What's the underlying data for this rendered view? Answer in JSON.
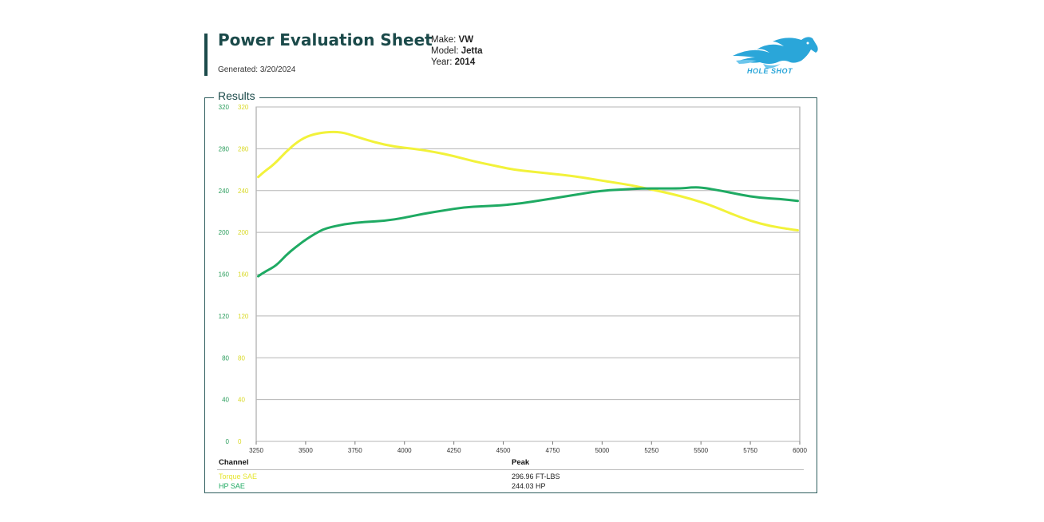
{
  "header": {
    "title": "Power Evaluation Sheet",
    "generated": "Generated: 3/20/2024",
    "make_label": "Make:",
    "make": "VW",
    "model_label": "Model:",
    "model": "Jetta",
    "year_label": "Year:",
    "year": "2014",
    "logo_text": "HOLE SHOT",
    "logo_color": "#2aa6d9"
  },
  "results_label": "Results",
  "colors": {
    "torque": "#f2f23a",
    "hp": "#1faa63",
    "accent": "#1b4a4a",
    "grid": "#b5b5b5"
  },
  "chart_data": {
    "type": "line",
    "x_ticks": [
      "3250",
      "3500",
      "3750",
      "4000",
      "4250",
      "4500",
      "4750",
      "5000",
      "5250",
      "5500",
      "5750",
      "6000"
    ],
    "y_left_ticks": [
      "320",
      "280",
      "240",
      "200",
      "160",
      "120",
      "80",
      "40",
      "0"
    ],
    "y_right_ticks": [
      "320",
      "280",
      "240",
      "200",
      "160",
      "120",
      "80",
      "40",
      "0"
    ],
    "xlim": [
      3250,
      6000
    ],
    "ylim": [
      0,
      320
    ],
    "grid": true,
    "series": [
      {
        "name": "Torque SAE",
        "color": "#f2f23a",
        "x": [
          3260,
          3290,
          3340,
          3400,
          3460,
          3520,
          3600,
          3680,
          3750,
          3850,
          3950,
          4050,
          4150,
          4250,
          4350,
          4450,
          4550,
          4650,
          4750,
          4850,
          4950,
          5050,
          5150,
          5250,
          5350,
          5450,
          5550,
          5650,
          5750,
          5850,
          5950,
          5990
        ],
        "y": [
          253,
          258,
          265,
          277,
          287,
          293,
          296,
          296,
          292,
          286,
          282,
          280,
          277,
          273,
          268,
          264,
          260,
          258,
          256,
          254,
          251,
          248,
          245,
          241,
          237,
          232,
          226,
          218,
          211,
          206,
          203,
          202
        ]
      },
      {
        "name": "HP SAE",
        "color": "#1faa63",
        "x": [
          3260,
          3300,
          3350,
          3400,
          3450,
          3500,
          3550,
          3600,
          3700,
          3800,
          3900,
          4000,
          4100,
          4200,
          4300,
          4400,
          4500,
          4600,
          4700,
          4800,
          4900,
          5000,
          5100,
          5200,
          5300,
          5400,
          5450,
          5500,
          5600,
          5700,
          5800,
          5900,
          5990
        ],
        "y": [
          158,
          163,
          168,
          178,
          186,
          193,
          199,
          204,
          208,
          210,
          211,
          214,
          218,
          221,
          224,
          225,
          226,
          228,
          231,
          234,
          237,
          240,
          241,
          242,
          242,
          242,
          243,
          243,
          240,
          236,
          233,
          232,
          230
        ]
      }
    ]
  },
  "table": {
    "channel_header": "Channel",
    "peak_header": "Peak",
    "rows": [
      {
        "channel": "Torque SAE",
        "peak": "296.96 FT-LBS"
      },
      {
        "channel": "HP SAE",
        "peak": "244.03 HP"
      }
    ]
  }
}
